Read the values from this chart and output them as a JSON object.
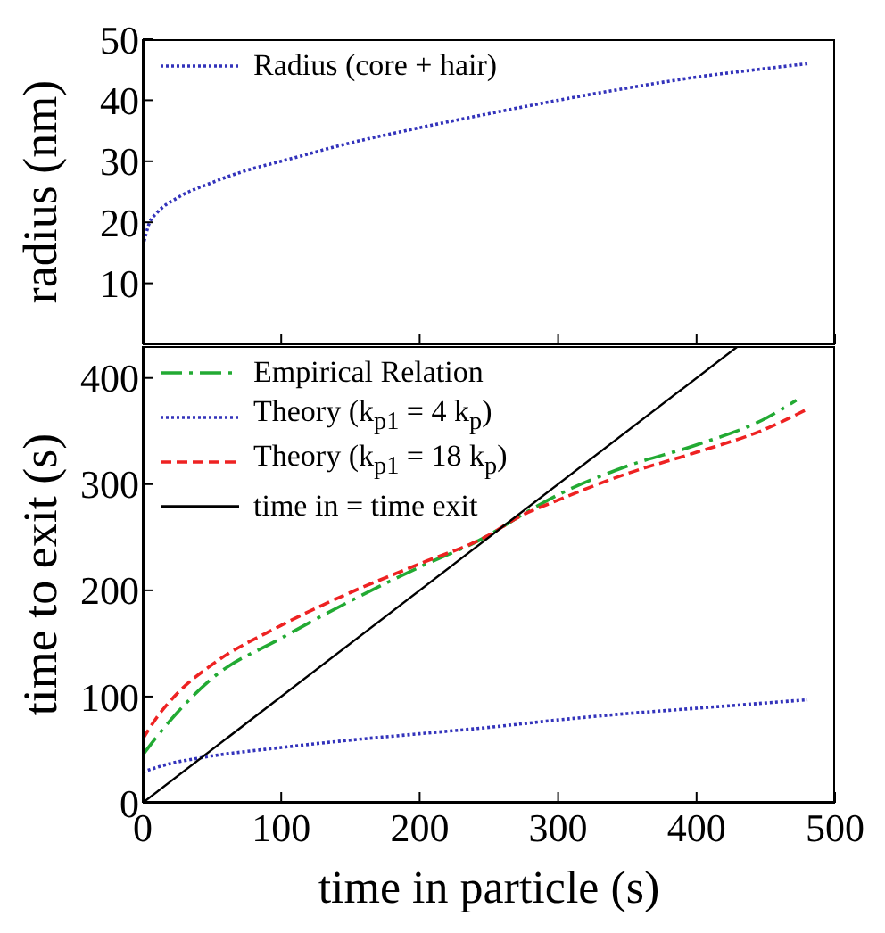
{
  "chart_data": [
    {
      "type": "line",
      "ylabel": "radius (nm)",
      "xlim": [
        0,
        500
      ],
      "xticks": [
        0,
        100,
        200,
        300,
        400,
        500
      ],
      "ylim": [
        0,
        50
      ],
      "yticks": [
        10,
        20,
        30,
        40,
        50
      ],
      "tick_labels": "y",
      "legend": "top left",
      "series": [
        {
          "name": "Radius (core + hair)",
          "color": "#3333bb",
          "line_style": "dotted",
          "x": [
            0,
            5,
            10,
            25,
            50,
            75,
            100,
            150,
            200,
            250,
            300,
            350,
            400,
            450,
            480
          ],
          "values": [
            16,
            20,
            21.5,
            24,
            26.5,
            28.5,
            30,
            33,
            35.5,
            37.8,
            40,
            42,
            43.8,
            45.2,
            46
          ]
        }
      ]
    },
    {
      "type": "line",
      "xlabel": "time in particle (s)",
      "ylabel": "time to exit (s)",
      "xlim": [
        0,
        500
      ],
      "xticks": [
        0,
        100,
        200,
        300,
        400,
        500
      ],
      "ylim": [
        0,
        430
      ],
      "yticks": [
        0,
        100,
        200,
        300,
        400
      ],
      "legend": "top left",
      "series": [
        {
          "name": "Empirical Relation",
          "color": "#22aa33",
          "line_style": "dashdot",
          "x": [
            0,
            10,
            25,
            50,
            100,
            150,
            200,
            250,
            270,
            300,
            350,
            400,
            450,
            472
          ],
          "values": [
            45,
            62,
            85,
            117,
            155,
            190,
            222,
            252,
            268,
            290,
            317,
            337,
            362,
            379
          ]
        },
        {
          "name": "Theory (k$_{p1}$ = 4 k$_{p}$)",
          "color": "#3333bb",
          "line_style": "dotted",
          "x": [
            0,
            20,
            40,
            100,
            150,
            200,
            250,
            300,
            350,
            400,
            480
          ],
          "values": [
            29,
            37,
            42,
            52,
            59,
            65,
            71,
            78,
            84,
            89,
            97
          ]
        },
        {
          "name": "Theory (k$_{p1}$ = 18 k$_{p}$)",
          "color": "#ee2222",
          "line_style": "dashed",
          "x": [
            0,
            10,
            25,
            50,
            100,
            150,
            200,
            250,
            270,
            300,
            350,
            400,
            450,
            479
          ],
          "values": [
            60,
            80,
            103,
            130,
            167,
            198,
            225,
            252,
            268,
            285,
            310,
            330,
            352,
            370
          ]
        },
        {
          "name": "time in = time exit",
          "color": "#000000",
          "line_style": "solid",
          "x": [
            0,
            430
          ],
          "values": [
            0,
            430
          ]
        }
      ]
    }
  ]
}
